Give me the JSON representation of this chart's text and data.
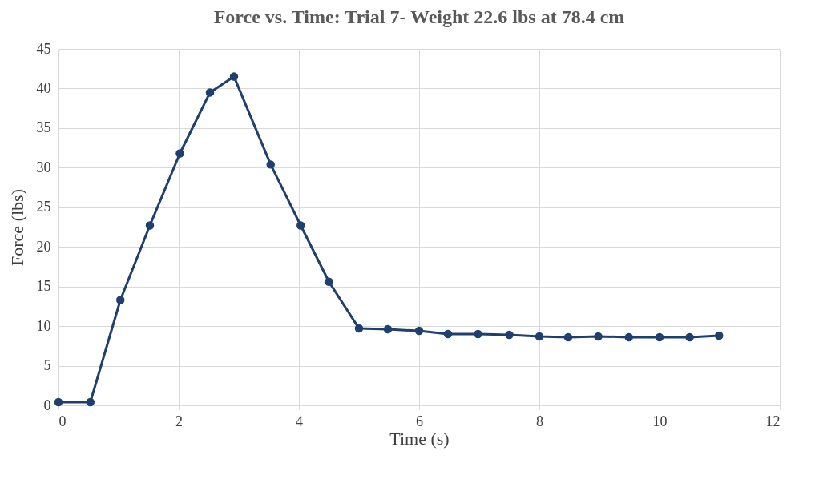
{
  "chart_data": {
    "type": "line",
    "title": "Force vs. Time: Trial 7- Weight 22.6 lbs at 78.4 cm",
    "xlabel": "Time (s)",
    "ylabel": "Force (lbs)",
    "x": [
      0,
      0.53,
      1.03,
      1.52,
      2.02,
      2.52,
      2.92,
      3.53,
      4.03,
      4.5,
      5.0,
      5.48,
      6.0,
      6.48,
      6.98,
      7.5,
      8.0,
      8.48,
      8.98,
      9.49,
      10.0,
      10.5,
      10.99
    ],
    "series": [
      {
        "color": "#1f3f6e",
        "values": [
          0.4,
          0.4,
          13.3,
          22.7,
          31.8,
          39.5,
          41.5,
          30.4,
          22.7,
          15.6,
          9.7,
          9.6,
          9.4,
          9.0,
          9.0,
          8.9,
          8.7,
          8.6,
          8.7,
          8.6,
          8.6,
          8.6,
          8.8
        ]
      }
    ],
    "xlim": [
      0,
      12
    ],
    "xticks": [
      0,
      2,
      4,
      6,
      8,
      10,
      12
    ],
    "ylim": [
      0,
      45
    ],
    "yticks": [
      0,
      5,
      10,
      15,
      20,
      25,
      30,
      35,
      40,
      45
    ],
    "grid": true,
    "marker": "circle",
    "line_style": "solid"
  }
}
